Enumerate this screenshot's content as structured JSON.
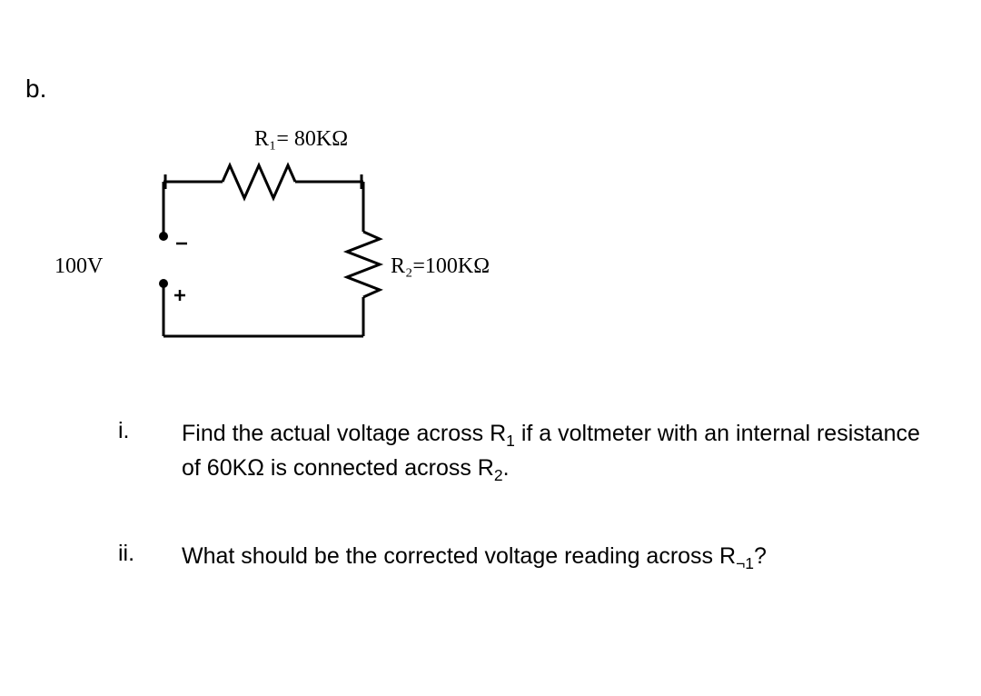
{
  "part_label": "b.",
  "circuit": {
    "voltage_label": "100V",
    "r1_label": "R₁= 80KΩ",
    "r2_label": "R₂=100KΩ",
    "wire_color": "#000000",
    "wire_width": 3,
    "resistor_symbol_color": "#000000"
  },
  "questions": [
    {
      "num": "i.",
      "text_html": "Find the actual voltage across R<sub>1</sub> if a voltmeter with an internal resistance of 60KΩ is connected across R<sub>2</sub>."
    },
    {
      "num": "ii.",
      "text_html": "What should be the corrected voltage reading across R<sub>¬1</sub>?"
    }
  ],
  "style": {
    "background_color": "#ffffff",
    "text_color": "#000000",
    "body_fontsize": 25,
    "circuit_label_fontsize": 24
  }
}
